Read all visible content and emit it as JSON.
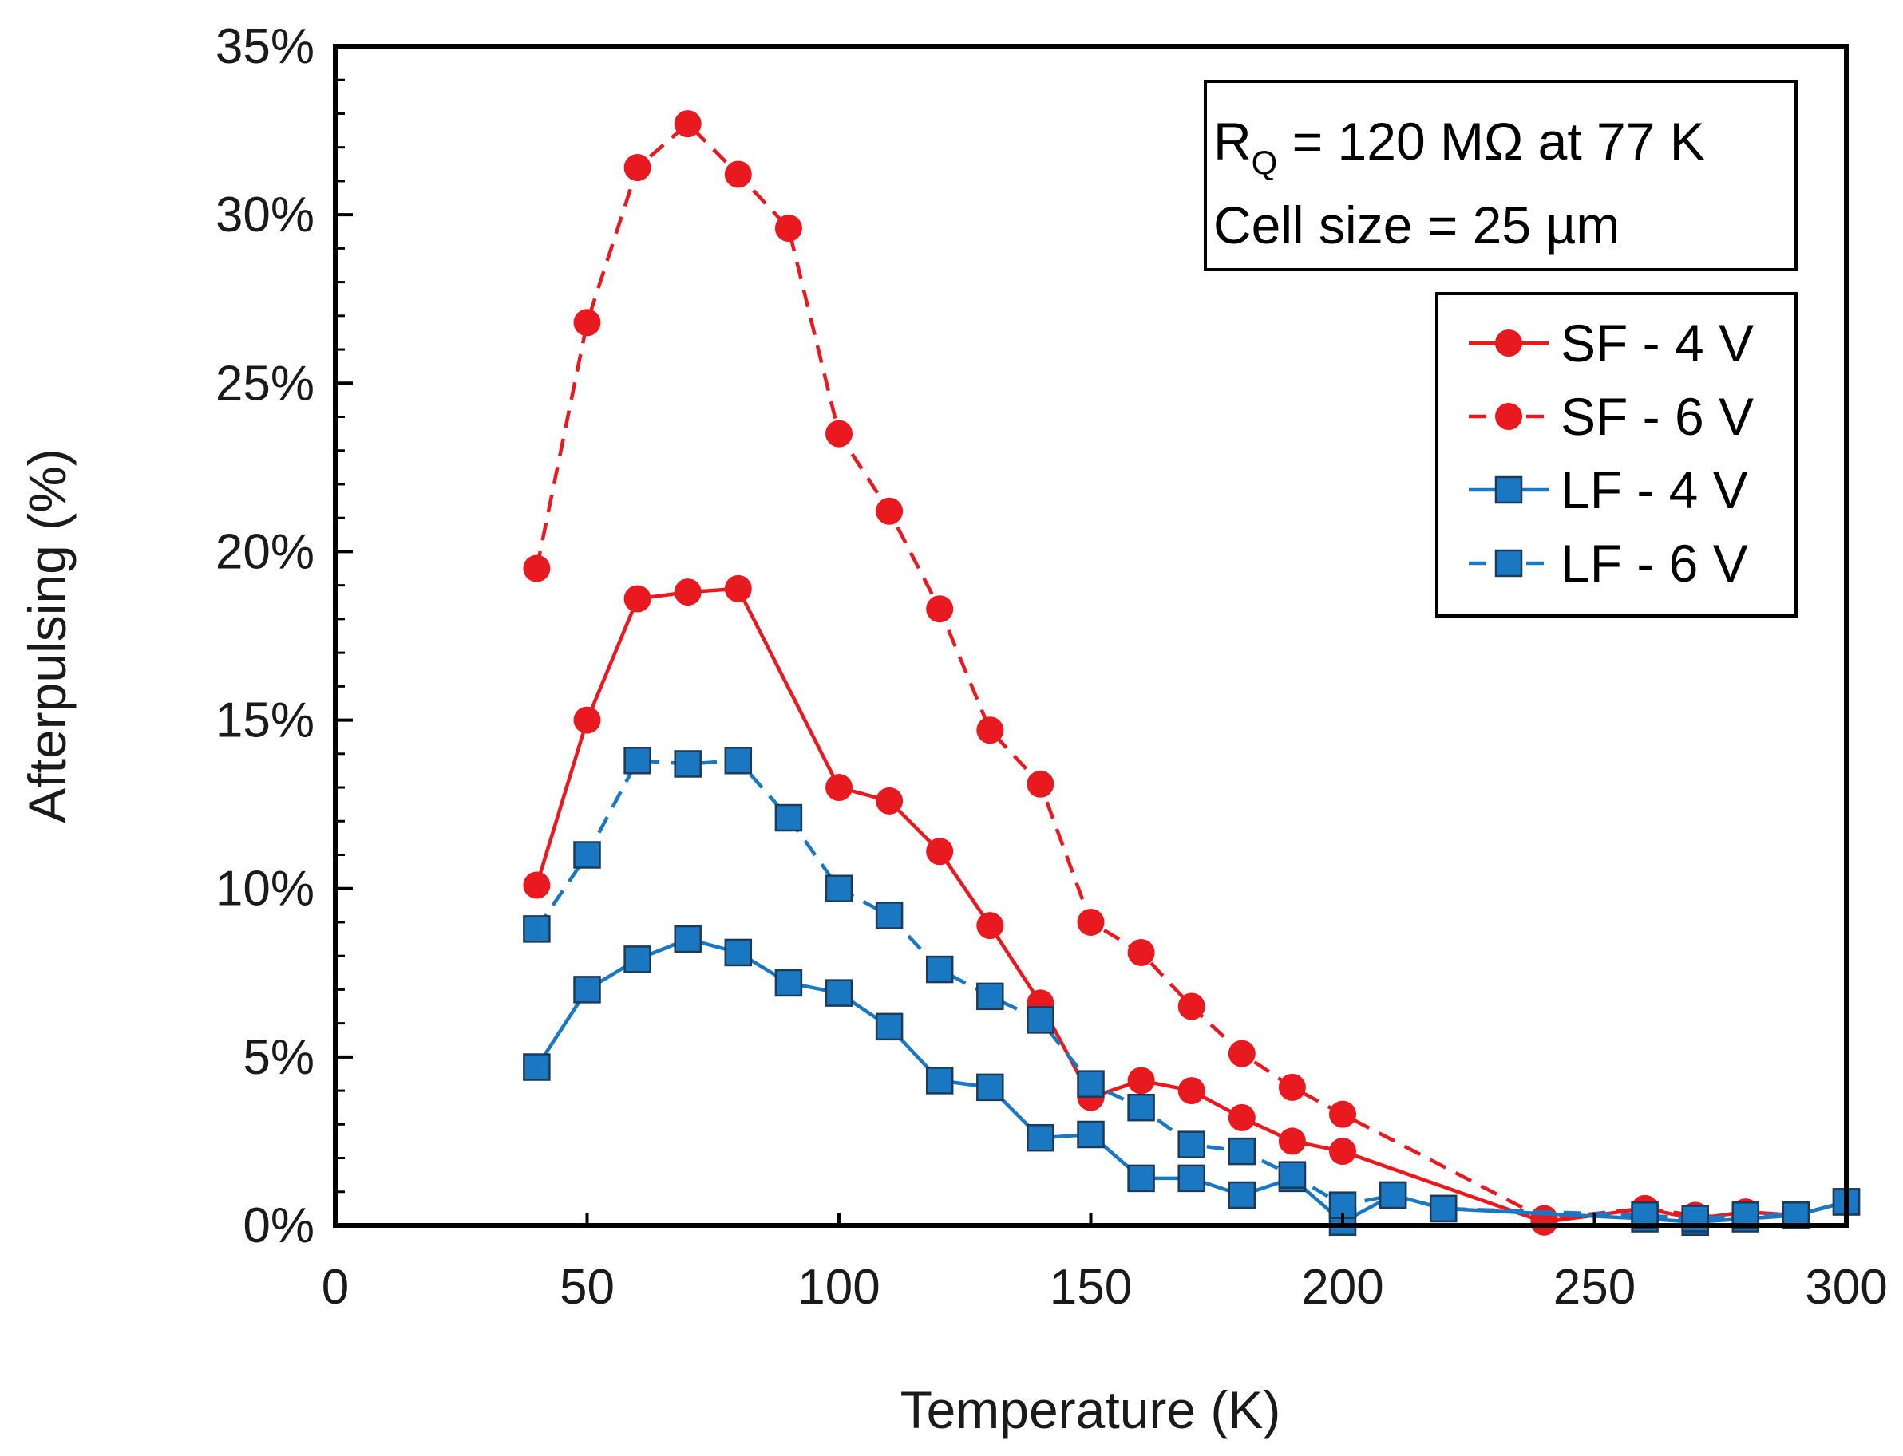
{
  "chart_data": {
    "type": "line",
    "title": "",
    "xlabel": "Temperature (K)",
    "ylabel": "Afterpulsing (%)",
    "xlim": [
      0,
      300
    ],
    "ylim": [
      0,
      35
    ],
    "xticks": [
      "0",
      "50",
      "100",
      "150",
      "200",
      "250",
      "300"
    ],
    "yticks": [
      "0%",
      "5%",
      "10%",
      "15%",
      "20%",
      "25%",
      "30%",
      "35%"
    ],
    "grid": false,
    "legend_position": "top-right",
    "annotation": {
      "line1_main": "R",
      "line1_sub": "Q",
      "line1_rest": " = 120 MΩ at 77 K",
      "line2": "Cell size = 25 µm"
    },
    "series": [
      {
        "name": "SF - 4 V",
        "color": "#e8191f",
        "dash": "solid",
        "marker": "circle",
        "x": [
          40,
          50,
          60,
          70,
          80,
          100,
          110,
          120,
          130,
          140,
          150,
          160,
          170,
          180,
          190,
          200,
          240,
          260,
          270,
          280,
          290,
          300
        ],
        "y": [
          10.1,
          15.0,
          18.6,
          18.8,
          18.9,
          13.0,
          12.6,
          11.1,
          8.9,
          6.6,
          3.8,
          4.3,
          4.0,
          3.2,
          2.5,
          2.2,
          0.1,
          0.5,
          0.2,
          0.4,
          0.3,
          0.7
        ]
      },
      {
        "name": "SF - 6 V",
        "color": "#e8191f",
        "dash": "dashed",
        "marker": "circle",
        "x": [
          40,
          50,
          60,
          70,
          80,
          90,
          100,
          110,
          120,
          130,
          140,
          150,
          160,
          170,
          180,
          190,
          200,
          240,
          260,
          270,
          280,
          290,
          300
        ],
        "y": [
          19.5,
          26.8,
          31.4,
          32.7,
          31.2,
          29.6,
          23.5,
          21.2,
          18.3,
          14.7,
          13.1,
          9.0,
          8.1,
          6.5,
          5.1,
          4.1,
          3.3,
          0.2,
          0.5,
          0.3,
          0.2,
          0.3,
          0.7
        ]
      },
      {
        "name": "LF - 4 V",
        "color": "#1a78c2",
        "dash": "solid",
        "marker": "square",
        "x": [
          40,
          50,
          60,
          70,
          80,
          90,
          100,
          110,
          120,
          130,
          140,
          150,
          160,
          170,
          180,
          190,
          200,
          210,
          220,
          260,
          270,
          280,
          290,
          300
        ],
        "y": [
          4.7,
          7.0,
          7.9,
          8.5,
          8.1,
          7.2,
          6.9,
          5.9,
          4.3,
          4.1,
          2.6,
          2.7,
          1.4,
          1.4,
          0.9,
          1.4,
          0.1,
          0.9,
          0.5,
          0.2,
          0.1,
          0.2,
          0.3,
          0.7
        ]
      },
      {
        "name": "LF - 6 V",
        "color": "#1a78c2",
        "dash": "dashed",
        "marker": "square",
        "x": [
          40,
          50,
          60,
          70,
          80,
          90,
          100,
          110,
          120,
          130,
          140,
          150,
          160,
          170,
          180,
          190,
          200,
          210,
          220,
          260,
          270,
          280,
          290,
          300
        ],
        "y": [
          8.8,
          11.0,
          13.8,
          13.7,
          13.8,
          12.1,
          10.0,
          9.2,
          7.6,
          6.8,
          6.1,
          4.2,
          3.5,
          2.4,
          2.2,
          1.5,
          0.6,
          0.9,
          0.5,
          0.3,
          0.2,
          0.3,
          0.3,
          0.7
        ]
      }
    ]
  }
}
